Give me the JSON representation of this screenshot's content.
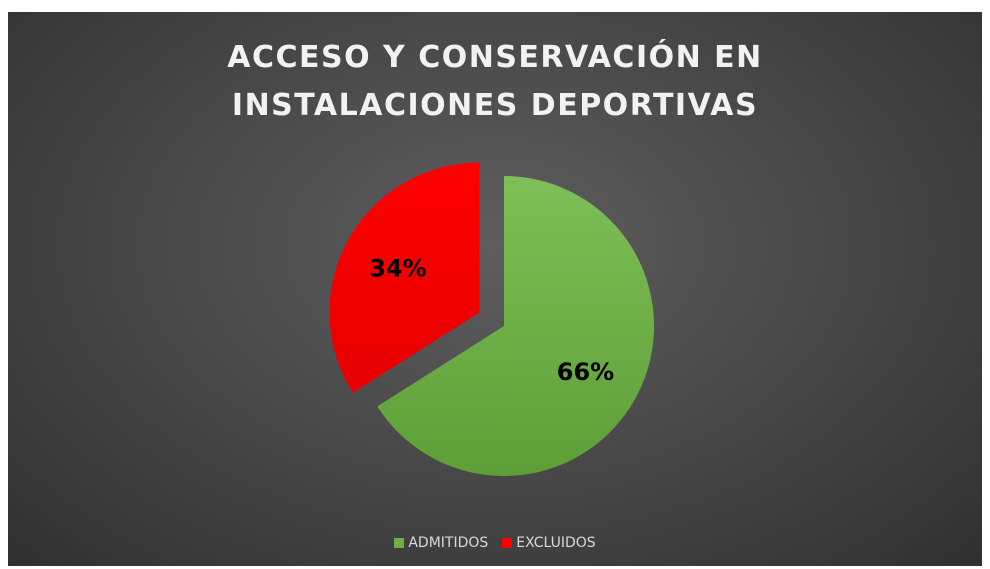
{
  "chart_data": {
    "type": "pie",
    "title_lines": [
      "ACCESO Y CONSERVACIÓN EN",
      "INSTALACIONES DEPORTIVAS"
    ],
    "categories": [
      "ADMITIDOS",
      "EXCLUIDOS"
    ],
    "values": [
      66,
      34
    ],
    "data_labels": [
      "66%",
      "34%"
    ],
    "colors": [
      "#70ad47",
      "#ff0000"
    ],
    "exploded": [
      "EXCLUIDOS"
    ],
    "legend_position": "bottom"
  }
}
